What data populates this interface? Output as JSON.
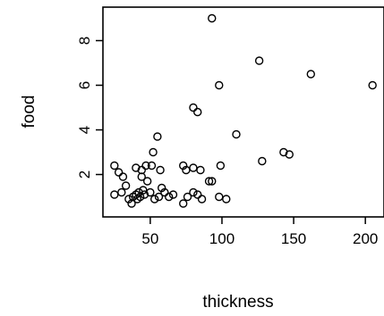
{
  "chart_data": {
    "type": "scatter",
    "xlabel": "thickness",
    "ylabel": "food",
    "xlim": [
      17,
      213
    ],
    "ylim": [
      0.1,
      9.5
    ],
    "x_ticks": [
      50,
      100,
      150,
      200
    ],
    "y_ticks": [
      2,
      4,
      6,
      8
    ],
    "grid": false,
    "points": [
      {
        "x": 93,
        "y": 9.0
      },
      {
        "x": 126,
        "y": 7.1
      },
      {
        "x": 162,
        "y": 6.5
      },
      {
        "x": 205,
        "y": 6.0
      },
      {
        "x": 98,
        "y": 6.0
      },
      {
        "x": 80,
        "y": 5.0
      },
      {
        "x": 83,
        "y": 4.8
      },
      {
        "x": 110,
        "y": 3.8
      },
      {
        "x": 55,
        "y": 3.7
      },
      {
        "x": 143,
        "y": 3.0
      },
      {
        "x": 147,
        "y": 2.9
      },
      {
        "x": 52,
        "y": 3.0
      },
      {
        "x": 128,
        "y": 2.6
      },
      {
        "x": 25,
        "y": 2.4
      },
      {
        "x": 28,
        "y": 2.1
      },
      {
        "x": 31,
        "y": 1.9
      },
      {
        "x": 40,
        "y": 2.3
      },
      {
        "x": 44,
        "y": 2.2
      },
      {
        "x": 47,
        "y": 2.4
      },
      {
        "x": 51,
        "y": 2.4
      },
      {
        "x": 57,
        "y": 2.2
      },
      {
        "x": 44,
        "y": 1.9
      },
      {
        "x": 48,
        "y": 1.7
      },
      {
        "x": 73,
        "y": 2.4
      },
      {
        "x": 75,
        "y": 2.2
      },
      {
        "x": 80,
        "y": 2.3
      },
      {
        "x": 85,
        "y": 2.2
      },
      {
        "x": 99,
        "y": 2.4
      },
      {
        "x": 91,
        "y": 1.7
      },
      {
        "x": 93,
        "y": 1.7
      },
      {
        "x": 25,
        "y": 1.1
      },
      {
        "x": 30,
        "y": 1.2
      },
      {
        "x": 33,
        "y": 1.5
      },
      {
        "x": 35,
        "y": 0.9
      },
      {
        "x": 37,
        "y": 0.7
      },
      {
        "x": 38,
        "y": 1.0
      },
      {
        "x": 40,
        "y": 1.1
      },
      {
        "x": 41,
        "y": 0.9
      },
      {
        "x": 42,
        "y": 1.2
      },
      {
        "x": 43,
        "y": 1.0
      },
      {
        "x": 45,
        "y": 1.3
      },
      {
        "x": 46,
        "y": 1.1
      },
      {
        "x": 50,
        "y": 1.2
      },
      {
        "x": 53,
        "y": 0.9
      },
      {
        "x": 56,
        "y": 1.0
      },
      {
        "x": 58,
        "y": 1.4
      },
      {
        "x": 60,
        "y": 1.2
      },
      {
        "x": 63,
        "y": 1.0
      },
      {
        "x": 66,
        "y": 1.1
      },
      {
        "x": 73,
        "y": 0.7
      },
      {
        "x": 76,
        "y": 1.0
      },
      {
        "x": 80,
        "y": 1.2
      },
      {
        "x": 83,
        "y": 1.1
      },
      {
        "x": 86,
        "y": 0.9
      },
      {
        "x": 98,
        "y": 1.0
      },
      {
        "x": 103,
        "y": 0.9
      }
    ]
  }
}
